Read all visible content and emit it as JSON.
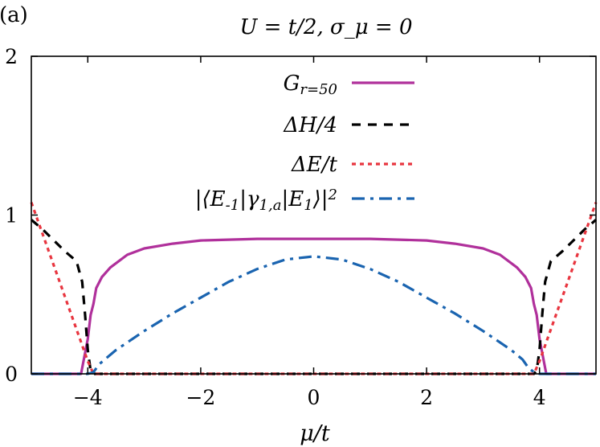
{
  "panel_label": "(a)",
  "chart_data": {
    "type": "line",
    "title": "U = t/2, σ_μ = 0",
    "xlabel": "μ/t",
    "ylabel": "",
    "xlim": [
      -5,
      5
    ],
    "ylim": [
      0,
      2
    ],
    "xticks": [
      -4,
      -2,
      0,
      2,
      4
    ],
    "xtick_labels": [
      "−4",
      "−2",
      "0",
      "2",
      "4"
    ],
    "yticks": [
      0,
      1,
      2
    ],
    "ytick_labels": [
      "0",
      "1",
      "2"
    ],
    "grid": false,
    "legend_position": "top-right",
    "series": [
      {
        "name": "G_{r=50}",
        "color": "#b0309b",
        "dash": "solid",
        "x": [
          -5,
          -4.2,
          -4.12,
          -4.0,
          -3.95,
          -3.9,
          -3.85,
          -3.75,
          -3.6,
          -3.3,
          -3.0,
          -2.5,
          -2.0,
          -1.0,
          0,
          1.0,
          2.0,
          2.5,
          3.0,
          3.3,
          3.6,
          3.75,
          3.85,
          3.9,
          3.95,
          4.0,
          4.12,
          4.2,
          5
        ],
        "y": [
          0,
          0,
          0,
          0.22,
          0.37,
          0.44,
          0.54,
          0.61,
          0.67,
          0.75,
          0.79,
          0.82,
          0.84,
          0.85,
          0.85,
          0.85,
          0.84,
          0.82,
          0.79,
          0.75,
          0.67,
          0.61,
          0.54,
          0.44,
          0.37,
          0.22,
          0,
          0,
          0
        ]
      },
      {
        "name": "ΔH/4",
        "color": "#000000",
        "dash": "dashed",
        "x": [
          -5,
          -4.8,
          -4.6,
          -4.4,
          -4.2,
          -4.1,
          -4.05,
          -4.0,
          -3.95,
          -3.9,
          3.9,
          3.95,
          4.0,
          4.05,
          4.1,
          4.2,
          4.4,
          4.6,
          4.8,
          5
        ],
        "y": [
          0.97,
          0.91,
          0.84,
          0.77,
          0.71,
          0.58,
          0.38,
          0.15,
          0.02,
          0,
          0,
          0.02,
          0.15,
          0.38,
          0.58,
          0.71,
          0.77,
          0.84,
          0.91,
          0.97
        ]
      },
      {
        "name": "ΔE/t",
        "color": "#e8353f",
        "dash": "dotted",
        "x": [
          -5,
          -4.5,
          -4.0,
          -3.9,
          3.9,
          4.0,
          4.5,
          5
        ],
        "y": [
          1.08,
          0.58,
          0.08,
          0,
          0,
          0.08,
          0.58,
          1.08
        ]
      },
      {
        "name": "|⟨E_{-1}|γ_{1,a}|E_1⟩|^2",
        "color": "#1a64b0",
        "dash": "dashdot",
        "x": [
          -5,
          -4.0,
          -3.9,
          -3.8,
          -3.5,
          -3.0,
          -2.5,
          -2.0,
          -1.5,
          -1.0,
          -0.5,
          0,
          0.5,
          1.0,
          1.5,
          2.0,
          2.5,
          3.0,
          3.5,
          3.7,
          3.8,
          3.9,
          4.0,
          5
        ],
        "y": [
          0,
          0,
          0.01,
          0.06,
          0.15,
          0.27,
          0.38,
          0.48,
          0.58,
          0.66,
          0.72,
          0.74,
          0.72,
          0.66,
          0.58,
          0.48,
          0.38,
          0.27,
          0.15,
          0.09,
          0.04,
          0.01,
          0,
          0
        ]
      }
    ]
  }
}
